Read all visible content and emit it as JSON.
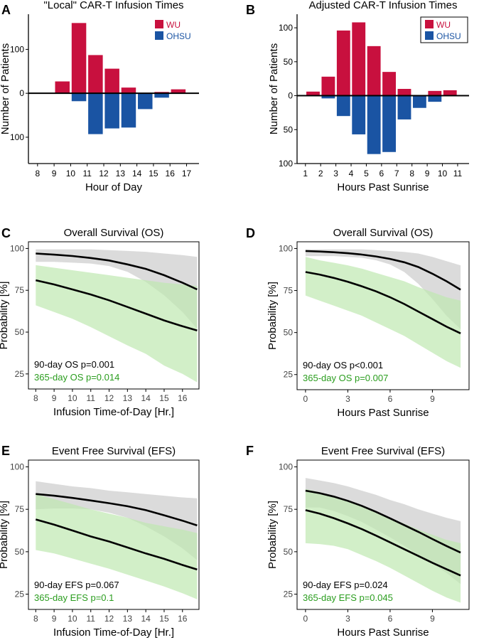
{
  "colors": {
    "wu": "#c8103e",
    "ohsu": "#1a54a3",
    "grey_band": "#cfcfcf",
    "green_band": "#bfe8b0",
    "green_text": "#2a9d1e",
    "line": "#000000"
  },
  "chart_data": [
    {
      "panel": "A",
      "type": "bar",
      "title": "\"Local\" CAR-T Infusion Times",
      "xlabel": "Hour of Day",
      "ylabel": "Number of Patients",
      "categories": [
        "8",
        "9",
        "10",
        "11",
        "12",
        "13",
        "14",
        "15",
        "16",
        "17"
      ],
      "series": [
        {
          "name": "WU",
          "values": [
            0,
            27,
            160,
            87,
            56,
            13,
            0,
            3,
            9,
            0
          ]
        },
        {
          "name": "OHSU",
          "values": [
            0,
            0,
            18,
            93,
            80,
            78,
            36,
            10,
            0,
            0
          ]
        }
      ],
      "ytick_labels": [
        "100",
        "0",
        "100"
      ],
      "ylim": [
        -160,
        180
      ],
      "legend_position": "top-right",
      "grid": false
    },
    {
      "panel": "B",
      "type": "bar",
      "title": "Adjusted CAR-T Infusion Times",
      "xlabel": "Hours Past Sunrise",
      "ylabel": "Number of Patients",
      "categories": [
        "1",
        "2",
        "3",
        "4",
        "5",
        "6",
        "7",
        "8",
        "9",
        "10",
        "11"
      ],
      "series": [
        {
          "name": "WU",
          "values": [
            6,
            28,
            96,
            108,
            73,
            35,
            10,
            0,
            7,
            8,
            0
          ]
        },
        {
          "name": "OHSU",
          "values": [
            0,
            4,
            30,
            57,
            86,
            83,
            35,
            18,
            9,
            0,
            0
          ]
        }
      ],
      "ytick_labels": [
        "100",
        "50",
        "0",
        "50",
        "100"
      ],
      "ylim": [
        -100,
        120
      ],
      "legend_position": "top-right",
      "grid": false
    },
    {
      "panel": "C",
      "type": "line",
      "title": "Overall Survival (OS)",
      "xlabel": "Infusion Time-of-Day [Hr.]",
      "ylabel": "Probability [%]",
      "x_ticks": [
        "8",
        "9",
        "10",
        "11",
        "12",
        "13",
        "14",
        "15",
        "16"
      ],
      "y_ticks": [
        "25",
        "50",
        "75",
        "100"
      ],
      "xlim": [
        7.6,
        16.9
      ],
      "ylim": [
        16,
        104
      ],
      "series": [
        {
          "name": "90-day OS",
          "x": [
            8,
            9,
            10,
            11,
            12,
            13,
            14,
            15,
            16,
            16.8
          ],
          "y": [
            97,
            96.3,
            95.5,
            94.3,
            92.8,
            90.5,
            87.8,
            84,
            79.5,
            75.5
          ],
          "lower": [
            92,
            92,
            91.5,
            91,
            89.5,
            86,
            80,
            72,
            62,
            52
          ],
          "upper": [
            99.5,
            99.5,
            99.5,
            99.5,
            99,
            98.5,
            98,
            97,
            96,
            95
          ]
        },
        {
          "name": "365-day OS",
          "x": [
            8,
            9,
            10,
            11,
            12,
            13,
            14,
            15,
            16,
            16.8
          ],
          "y": [
            81,
            78.5,
            75.5,
            72.5,
            69,
            65,
            61,
            57,
            53.5,
            51
          ],
          "lower": [
            66,
            62,
            58,
            53,
            47.5,
            42,
            37,
            30,
            25,
            20
          ],
          "upper": [
            90,
            88.5,
            87,
            85.5,
            84,
            82.5,
            81,
            79.5,
            78.5,
            77.5
          ]
        }
      ],
      "annotations": [
        {
          "text": "90-day OS p=0.001",
          "color": "black"
        },
        {
          "text": "365-day OS p=0.014",
          "color": "green"
        }
      ],
      "grid": false
    },
    {
      "panel": "D",
      "type": "line",
      "title": "Overall Survival (OS)",
      "xlabel": "Hours Past Sunrise",
      "ylabel": "Probability [%]",
      "x_ticks": [
        "0",
        "3",
        "6",
        "9"
      ],
      "y_ticks": [
        "25",
        "50",
        "75",
        "100"
      ],
      "xlim": [
        -0.6,
        11.6
      ],
      "ylim": [
        16,
        104
      ],
      "series": [
        {
          "name": "90-day OS",
          "x": [
            0,
            1,
            2,
            3,
            4,
            5,
            6,
            7,
            8,
            9,
            10,
            11
          ],
          "y": [
            98.5,
            98.2,
            97.8,
            97.2,
            96.4,
            95.3,
            93.8,
            91.8,
            89,
            85,
            80.5,
            75.5
          ],
          "lower": [
            95.5,
            95.5,
            95.5,
            95,
            94.5,
            93,
            90.5,
            86,
            79,
            70,
            60,
            52
          ],
          "upper": [
            99.5,
            99.5,
            99.5,
            99.5,
            99.5,
            99,
            98.5,
            98,
            97,
            95,
            92.5,
            90
          ]
        },
        {
          "name": "365-day OS",
          "x": [
            0,
            1,
            2,
            3,
            4,
            5,
            6,
            7,
            8,
            9,
            10,
            11
          ],
          "y": [
            86,
            84.5,
            82.5,
            80.2,
            77.5,
            74.5,
            71,
            67,
            62.5,
            58,
            53.5,
            49.5
          ],
          "lower": [
            72,
            69,
            66,
            63,
            60,
            56,
            52,
            48,
            43,
            38,
            33,
            29
          ],
          "upper": [
            95,
            93,
            91.5,
            90,
            88,
            85.5,
            83,
            80.5,
            77,
            74,
            71,
            69
          ]
        }
      ],
      "annotations": [
        {
          "text": "90-day OS p<0.001",
          "color": "black"
        },
        {
          "text": "365-day OS p=0.007",
          "color": "green"
        }
      ],
      "grid": false
    },
    {
      "panel": "E",
      "type": "line",
      "title": "Event Free Survival (EFS)",
      "xlabel": "Infusion Time-of-Day [Hr.]",
      "ylabel": "Probability [%]",
      "x_ticks": [
        "8",
        "9",
        "10",
        "11",
        "12",
        "13",
        "14",
        "15",
        "16"
      ],
      "y_ticks": [
        "25",
        "50",
        "75",
        "100"
      ],
      "xlim": [
        7.6,
        16.9
      ],
      "ylim": [
        16,
        104
      ],
      "series": [
        {
          "name": "90-day EFS",
          "x": [
            8,
            9,
            10,
            11,
            12,
            13,
            14,
            15,
            16,
            16.8
          ],
          "y": [
            84,
            83,
            81.7,
            80.2,
            78.6,
            76.8,
            74.5,
            71.5,
            68.3,
            65.5
          ],
          "lower": [
            75,
            75.5,
            75.5,
            75,
            73,
            70,
            65,
            59,
            52,
            45
          ],
          "upper": [
            91.5,
            90,
            88.5,
            87.5,
            86,
            85,
            84,
            83,
            82,
            81.5
          ]
        },
        {
          "name": "365-day EFS",
          "x": [
            8,
            9,
            10,
            11,
            12,
            13,
            14,
            15,
            16,
            16.8
          ],
          "y": [
            69,
            66,
            62.5,
            59,
            56,
            52.5,
            49,
            45.8,
            42.2,
            39.5
          ],
          "lower": [
            51,
            49,
            46,
            43,
            40,
            36.5,
            33,
            29.5,
            25.5,
            22
          ],
          "upper": [
            84,
            81,
            78,
            75,
            72.5,
            70,
            67,
            65,
            63,
            61
          ]
        }
      ],
      "annotations": [
        {
          "text": "90-day EFS p=0.067",
          "color": "black"
        },
        {
          "text": "365-day EFS p=0.1",
          "color": "green"
        }
      ],
      "grid": false
    },
    {
      "panel": "F",
      "type": "line",
      "title": "Event Free Survival (EFS)",
      "xlabel": "Hours Past Sunrise",
      "ylabel": "Probability [%]",
      "x_ticks": [
        "0",
        "3",
        "6",
        "9"
      ],
      "y_ticks": [
        "25",
        "50",
        "75",
        "100"
      ],
      "xlim": [
        -0.6,
        11.6
      ],
      "ylim": [
        16,
        104
      ],
      "series": [
        {
          "name": "90-day EFS",
          "x": [
            0,
            1,
            2,
            3,
            4,
            5,
            6,
            7,
            8,
            9,
            10,
            11
          ],
          "y": [
            86,
            84.5,
            82.5,
            80,
            77,
            73.5,
            69.7,
            65.7,
            61.7,
            57.5,
            53.4,
            49.5
          ],
          "lower": [
            76,
            76,
            74,
            71,
            67.5,
            63,
            58.5,
            53.5,
            48,
            43,
            37.5,
            31
          ],
          "upper": [
            93.5,
            92,
            90.5,
            88.5,
            86,
            83.5,
            80.5,
            78,
            75,
            72.5,
            70,
            68
          ]
        },
        {
          "name": "365-day EFS",
          "x": [
            0,
            1,
            2,
            3,
            4,
            5,
            6,
            7,
            8,
            9,
            10,
            11
          ],
          "y": [
            74.5,
            72.5,
            69.8,
            66.7,
            63.3,
            59.5,
            55.5,
            51.5,
            47.5,
            43.5,
            39.7,
            36
          ],
          "lower": [
            55,
            54.5,
            53.5,
            51.5,
            48,
            44.5,
            40.5,
            36,
            31.5,
            27,
            23,
            20
          ],
          "upper": [
            87,
            85,
            83,
            80,
            77,
            73.5,
            70,
            66.5,
            63,
            60,
            57,
            55
          ]
        }
      ],
      "annotations": [
        {
          "text": "90-day EFS p=0.024",
          "color": "black"
        },
        {
          "text": "365-day EFS p=0.045",
          "color": "green"
        }
      ],
      "grid": false
    }
  ]
}
